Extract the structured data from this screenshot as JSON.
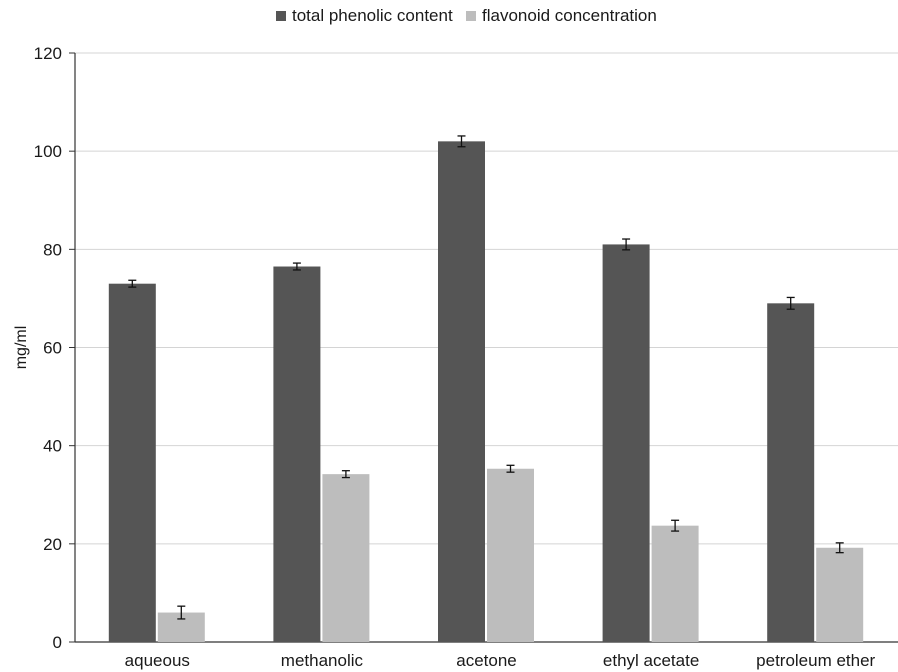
{
  "chart_data": {
    "type": "bar",
    "title": "",
    "xlabel": "",
    "ylabel": "mg/ml",
    "ylim": [
      0,
      120
    ],
    "yticks": [
      0,
      20,
      40,
      60,
      80,
      100,
      120
    ],
    "grid": true,
    "legend_position": "top",
    "categories": [
      "aqueous",
      "methanolic",
      "acetone",
      "ethyl acetate",
      "petroleum ether"
    ],
    "series": [
      {
        "name": "total phenolic content",
        "color": "#555555",
        "values": [
          73,
          76.5,
          102,
          81,
          69
        ],
        "errors": [
          0.7,
          0.7,
          1.1,
          1.1,
          1.2
        ]
      },
      {
        "name": "flavonoid concentration",
        "color": "#bdbdbd",
        "values": [
          6,
          34.2,
          35.3,
          23.7,
          19.2
        ],
        "errors": [
          1.3,
          0.7,
          0.7,
          1.1,
          1.0
        ]
      }
    ]
  }
}
